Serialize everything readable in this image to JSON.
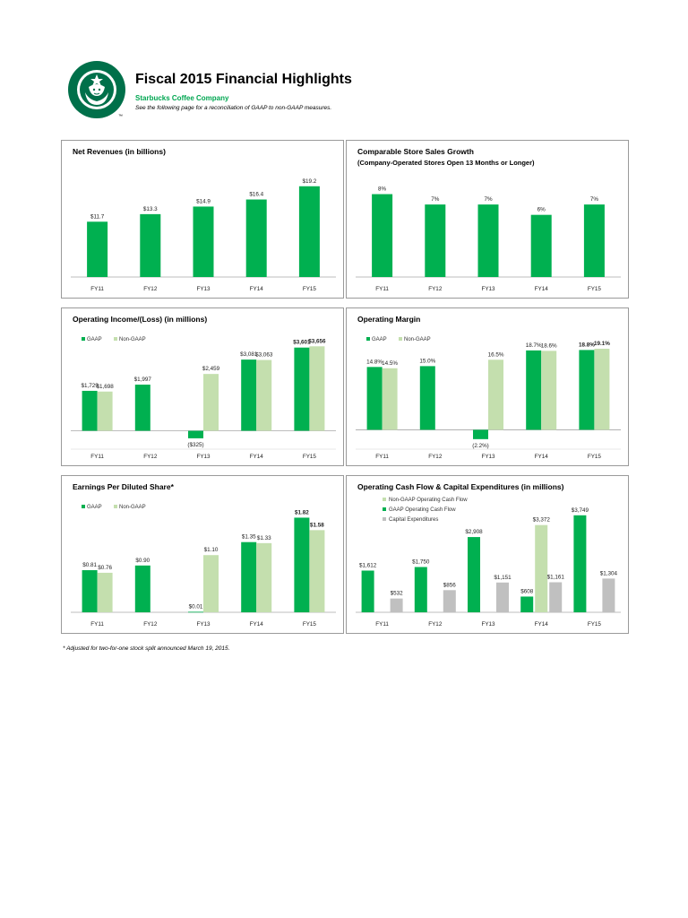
{
  "header": {
    "title": "Fiscal 2015 Financial Highlights",
    "company": "Starbucks Coffee Company",
    "note": "See the following page for a reconciliation of GAAP to non-GAAP measures.",
    "logo_text": "™"
  },
  "footnote": "* Adjusted for two-for-one stock split announced March 19, 2015.",
  "colors": {
    "gaap": "#00b050",
    "nongaap": "#c4dfae",
    "capex": "#c0c0c0",
    "brand": "#00704a"
  },
  "chart_data": [
    {
      "id": "net_revenues",
      "type": "bar",
      "title": "Net Revenues (in billions)",
      "subtitle": "",
      "categories": [
        "FY11",
        "FY12",
        "FY13",
        "FY14",
        "FY15"
      ],
      "ylim": [
        0,
        22
      ],
      "series": [
        {
          "name": "Net Revenues",
          "color": "#00b050",
          "values": [
            11.7,
            13.3,
            14.9,
            16.4,
            19.2
          ],
          "labels": [
            "$11.7",
            "$13.3",
            "$14.9",
            "$16.4",
            "$19.2"
          ]
        }
      ],
      "legend": []
    },
    {
      "id": "comp_sales",
      "type": "bar",
      "title": "Comparable Store Sales Growth",
      "subtitle": "(Company-Operated Stores Open 13 Months or Longer)",
      "categories": [
        "FY11",
        "FY12",
        "FY13",
        "FY14",
        "FY15"
      ],
      "ylim": [
        0,
        9
      ],
      "series": [
        {
          "name": "Comparable Store Sales Growth",
          "color": "#00b050",
          "values": [
            8,
            7,
            7,
            6,
            7
          ],
          "labels": [
            "8%",
            "7%",
            "7%",
            "6%",
            "7%"
          ]
        }
      ],
      "legend": []
    },
    {
      "id": "operating_income",
      "type": "bar",
      "title": "Operating Income/(Loss) (in millions)",
      "subtitle": "",
      "categories": [
        "FY11",
        "FY12",
        "FY13",
        "FY14",
        "FY15"
      ],
      "ylim": [
        -600,
        3900
      ],
      "series": [
        {
          "name": "GAAP",
          "color": "#00b050",
          "values": [
            1729,
            1997,
            -325,
            3081,
            3601
          ],
          "labels": [
            "$1,729",
            "$1,997",
            "($325)",
            "$3,081",
            "$3,601"
          ]
        },
        {
          "name": "Non-GAAP",
          "color": "#c4dfae",
          "values": [
            1698,
            null,
            2459,
            3063,
            3656
          ],
          "labels": [
            "$1,698",
            "",
            "$2,459",
            "$3,063",
            "$3,656"
          ]
        }
      ],
      "legend": [
        "GAAP",
        "Non-GAAP"
      ]
    },
    {
      "id": "operating_margin",
      "type": "bar",
      "title": "Operating Margin",
      "subtitle": "",
      "categories": [
        "FY11",
        "FY12",
        "FY13",
        "FY14",
        "FY15"
      ],
      "ylim": [
        -3.5,
        21
      ],
      "series": [
        {
          "name": "GAAP",
          "color": "#00b050",
          "values": [
            14.8,
            15.0,
            -2.2,
            18.7,
            18.8
          ],
          "labels": [
            "14.8%",
            "15.0%",
            "(2.2%)",
            "18.7%",
            "18.8%"
          ]
        },
        {
          "name": "Non-GAAP",
          "color": "#c4dfae",
          "values": [
            14.5,
            null,
            16.5,
            18.6,
            19.1
          ],
          "labels": [
            "14.5%",
            "",
            "16.5%",
            "18.6%",
            "19.1%"
          ]
        }
      ],
      "legend": [
        "GAAP",
        "Non-GAAP"
      ]
    },
    {
      "id": "eps",
      "type": "bar",
      "title": "Earnings Per Diluted Share*",
      "subtitle": "",
      "categories": [
        "FY11",
        "FY12",
        "FY13",
        "FY14",
        "FY15"
      ],
      "ylim": [
        0,
        2.0
      ],
      "series": [
        {
          "name": "GAAP",
          "color": "#00b050",
          "values": [
            0.81,
            0.9,
            0.01,
            1.35,
            1.82
          ],
          "labels": [
            "$0.81",
            "$0.90",
            "$0.01",
            "$1.35",
            "$1.82"
          ]
        },
        {
          "name": "Non-GAAP",
          "color": "#c4dfae",
          "values": [
            0.76,
            null,
            1.1,
            1.33,
            1.58
          ],
          "labels": [
            "$0.76",
            "",
            "$1.10",
            "$1.33",
            "$1.58"
          ]
        }
      ],
      "legend": [
        "GAAP",
        "Non-GAAP"
      ]
    },
    {
      "id": "cash_flow",
      "type": "bar",
      "title": "Operating Cash Flow & Capital Expenditures (in millions)",
      "subtitle": "",
      "categories": [
        "FY11",
        "FY12",
        "FY13",
        "FY14",
        "FY15"
      ],
      "ylim": [
        0,
        3950
      ],
      "series": [
        {
          "name": "GAAP Operating Cash Flow",
          "color": "#00b050",
          "values": [
            1612,
            1750,
            2908,
            608,
            3749
          ],
          "labels": [
            "$1,612",
            "$1,750",
            "$2,908",
            "$608",
            "$3,749"
          ]
        },
        {
          "name": "Non-GAAP Operating Cash Flow",
          "color": "#c4dfae",
          "values": [
            null,
            null,
            null,
            3372,
            null
          ],
          "labels": [
            "",
            "",
            "",
            "$3,372",
            ""
          ]
        },
        {
          "name": "Capital Expenditures",
          "color": "#c0c0c0",
          "values": [
            532,
            856,
            1151,
            1161,
            1304
          ],
          "labels": [
            "$532",
            "$856",
            "$1,151",
            "$1,161",
            "$1,304"
          ]
        }
      ],
      "legend": [
        "Non-GAAP Operating Cash Flow",
        "GAAP Operating Cash Flow",
        "Capital Expenditures"
      ]
    }
  ]
}
